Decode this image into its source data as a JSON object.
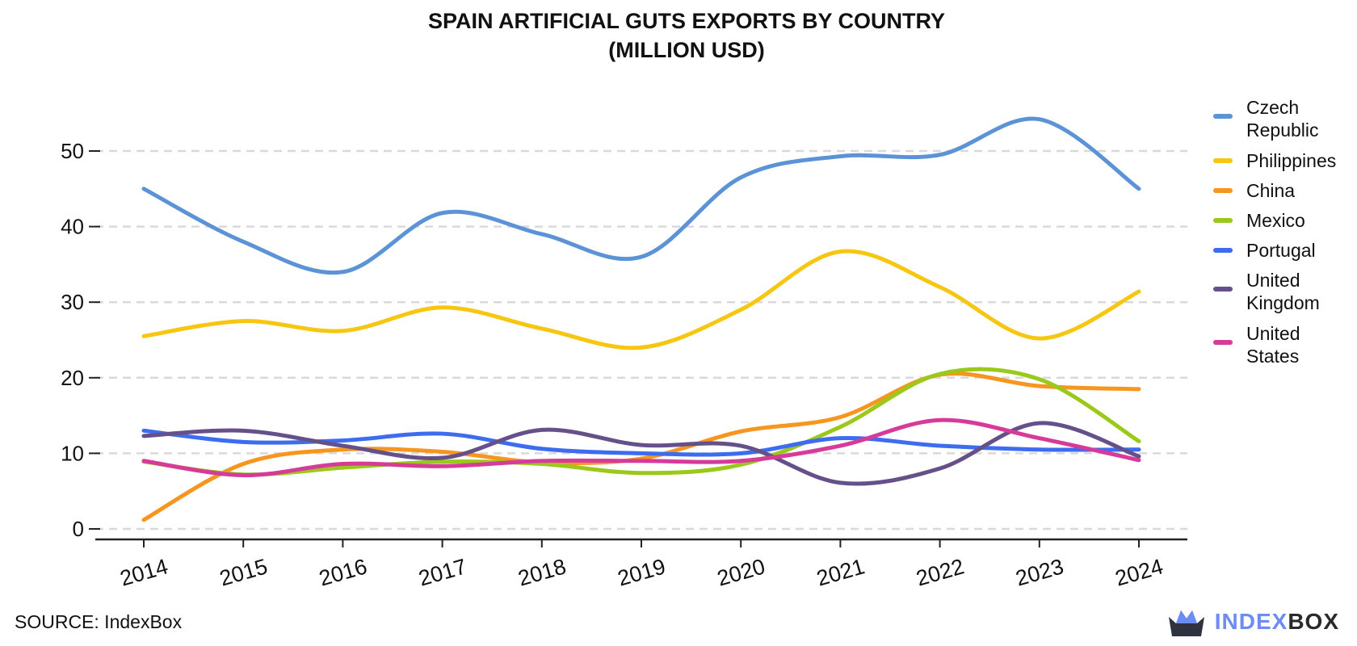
{
  "chart_data": {
    "type": "line",
    "title": [
      "SPAIN ARTIFICIAL GUTS EXPORTS BY COUNTRY",
      "(MILLION USD)"
    ],
    "xlabel": "",
    "ylabel": "",
    "x": [
      "2014",
      "2015",
      "2016",
      "2017",
      "2018",
      "2019",
      "2020",
      "2021",
      "2022",
      "2023",
      "2024"
    ],
    "ylim": [
      0,
      55
    ],
    "yticks": [
      0,
      10,
      20,
      30,
      40,
      50
    ],
    "grid": true,
    "legend_position": "right",
    "series": [
      {
        "name": "Czech Republic",
        "legend": [
          "Czech",
          "Republic"
        ],
        "color": "#5b93d6",
        "values": [
          45,
          38,
          34,
          41.8,
          39,
          36,
          46.5,
          49.3,
          49.5,
          54.2,
          45
        ]
      },
      {
        "name": "Philippines",
        "legend": [
          "Philippines"
        ],
        "color": "#f7c611",
        "values": [
          25.5,
          27.5,
          26.2,
          29.3,
          26.5,
          24,
          29,
          36.7,
          32,
          25.2,
          31.4
        ]
      },
      {
        "name": "China",
        "legend": [
          "China"
        ],
        "color": "#f7961e",
        "values": [
          1.2,
          8.6,
          10.5,
          10.2,
          8.8,
          9.3,
          12.9,
          14.8,
          20.4,
          18.9,
          18.5
        ]
      },
      {
        "name": "Mexico",
        "legend": [
          "Mexico"
        ],
        "color": "#9ac91b",
        "values": [
          8.9,
          7.2,
          8.1,
          8.9,
          8.6,
          7.4,
          8.5,
          13.5,
          20.5,
          19.8,
          11.6
        ]
      },
      {
        "name": "Portugal",
        "legend": [
          "Portugal"
        ],
        "color": "#3d6cf0",
        "values": [
          13,
          11.5,
          11.7,
          12.6,
          10.6,
          10,
          10,
          12,
          11,
          10.5,
          10.5
        ]
      },
      {
        "name": "United Kingdom",
        "legend": [
          "United",
          "Kingdom"
        ],
        "color": "#65508a",
        "values": [
          12.3,
          13,
          11,
          9.4,
          13.1,
          11.1,
          11,
          6.1,
          8,
          14,
          9.6
        ]
      },
      {
        "name": "United States",
        "legend": [
          "United",
          "States"
        ],
        "color": "#d73b9a",
        "values": [
          9,
          7.1,
          8.6,
          8.3,
          9,
          9,
          9,
          11,
          14.4,
          12,
          9.1
        ]
      }
    ]
  },
  "footer": {
    "source": "SOURCE: IndexBox",
    "brand_a": "INDEX",
    "brand_b": "BOX"
  },
  "colors": {
    "grid": "#d9d9d9",
    "axis": "#222222",
    "brand_accent": "#6d8cf4",
    "logo_dark": "#2f3340"
  }
}
